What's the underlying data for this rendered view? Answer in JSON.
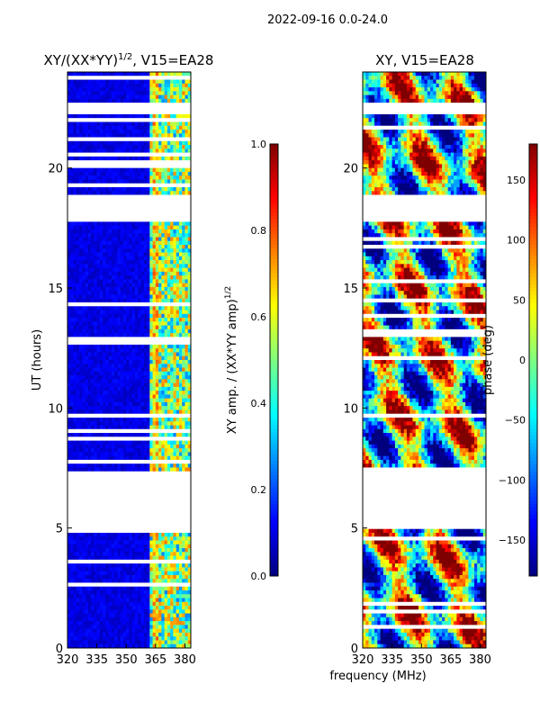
{
  "figure_title": "2022-09-16 0.0-24.0",
  "colors": {
    "background": "#ffffff",
    "axis": "#000000",
    "blank_band": "#ffffff",
    "jet": [
      "#00007f",
      "#0000ff",
      "#007fff",
      "#00ffff",
      "#7fff7f",
      "#ffff00",
      "#ff7f00",
      "#ff0000",
      "#7f0000"
    ]
  },
  "chart_data": [
    {
      "type": "heatmap",
      "title_main": "XY/(XX*YY)",
      "title_sup": "1/2",
      "title_rest": ", V15=EA28",
      "xlabel": "",
      "ylabel": "UT (hours)",
      "xlim": [
        320,
        383
      ],
      "ylim": [
        0,
        24
      ],
      "xticks": [
        320,
        335,
        350,
        365,
        380
      ],
      "yticks": [
        0,
        5,
        10,
        15,
        20
      ],
      "mode": "amp",
      "colorbar": {
        "label_main": "XY amp. / (XX*YY amp)",
        "label_sup": "1/2",
        "range": [
          0.0,
          1.0
        ],
        "ticks": [
          "0.0",
          "0.2",
          "0.4",
          "0.6",
          "0.8",
          "1.0"
        ]
      }
    },
    {
      "type": "heatmap",
      "title_main": "XY, V15=EA28",
      "xlabel": "frequency (MHz)",
      "ylabel": "",
      "xlim": [
        320,
        383
      ],
      "ylim": [
        0,
        24
      ],
      "xticks": [
        320,
        335,
        350,
        365,
        380
      ],
      "yticks": [
        0,
        5,
        10,
        15,
        20
      ],
      "mode": "phase",
      "colorbar": {
        "label_main": "phase (deg)",
        "range": [
          -180,
          180
        ],
        "ticks": [
          "150",
          "100",
          "50",
          "0",
          "−50",
          "−100",
          "−150"
        ]
      }
    }
  ],
  "flagged_ut_ranges": [
    [
      4.95,
      7.4
    ],
    [
      17.75,
      18.85
    ],
    [
      22.2,
      22.7
    ]
  ]
}
